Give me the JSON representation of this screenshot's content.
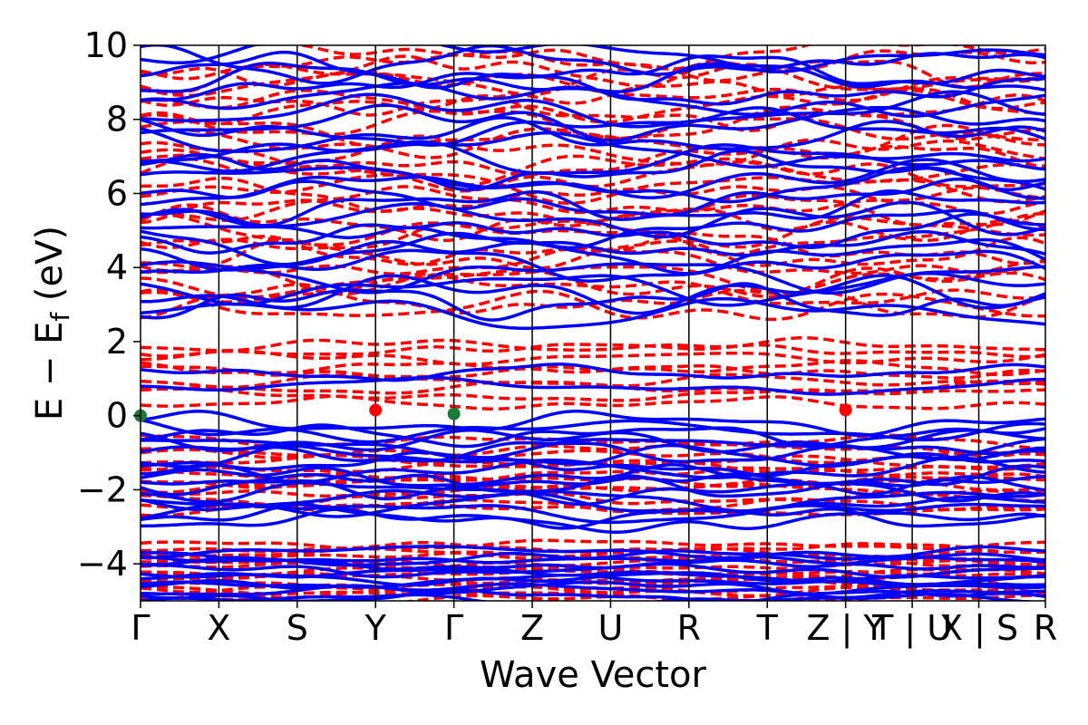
{
  "chart_data": {
    "type": "line",
    "xlabel": "Wave Vector",
    "ylabel": "E − E_f (eV)",
    "ylabel_main": "E − E",
    "ylabel_sub": "f",
    "ylabel_unit": " (eV)",
    "ylim": [
      -5,
      10
    ],
    "yticks": [
      -4,
      -2,
      0,
      2,
      4,
      6,
      8,
      10
    ],
    "ytick_labels": [
      "−4",
      "−2",
      "0",
      "2",
      "4",
      "6",
      "8",
      "10"
    ],
    "kpath_positions": [
      0,
      1,
      2,
      3,
      4,
      5,
      6,
      7,
      8,
      9,
      9.85,
      10.7,
      11.55
    ],
    "kpath_labels": [
      "Γ",
      "X",
      "S",
      "Y",
      "Γ",
      "Z",
      "U",
      "R",
      "T",
      "Z | Y",
      "T | U",
      "X | S",
      "R"
    ],
    "grid": false,
    "series": [
      {
        "style": "dashed",
        "color": "#ff0000",
        "conduction_band_min": 0.15,
        "valence_band_max": null
      },
      {
        "style": "solid",
        "color": "#0000ff",
        "conduction_band_min": 0.45,
        "valence_band_max": 0.05
      }
    ],
    "markers": [
      {
        "x": 0,
        "y": 0.0,
        "color": "#1a7a3a"
      },
      {
        "x": 3,
        "y": 0.15,
        "color": "#ff0000"
      },
      {
        "x": 4,
        "y": 0.05,
        "color": "#1a7a3a"
      },
      {
        "x": 9,
        "y": 0.15,
        "color": "#ff0000"
      }
    ]
  },
  "colors": {
    "red": "#ff0000",
    "blue": "#0000ff",
    "green": "#1a7a3a"
  }
}
